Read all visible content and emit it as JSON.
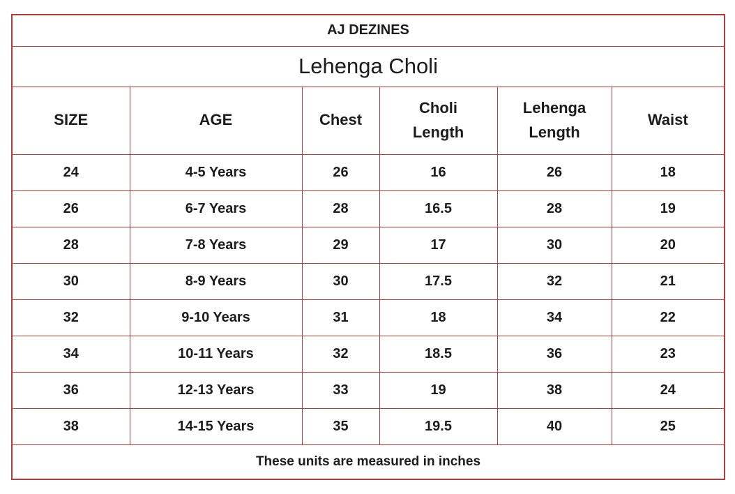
{
  "table": {
    "brand": "AJ DEZINES",
    "title": "Lehenga Choli",
    "columns": [
      "SIZE",
      "AGE",
      "Chest",
      "Choli Length",
      "Lehenga Length",
      "Waist"
    ],
    "rows": [
      [
        "24",
        "4-5 Years",
        "26",
        "16",
        "26",
        "18"
      ],
      [
        "26",
        "6-7 Years",
        "28",
        "16.5",
        "28",
        "19"
      ],
      [
        "28",
        "7-8 Years",
        "29",
        "17",
        "30",
        "20"
      ],
      [
        "30",
        "8-9 Years",
        "30",
        "17.5",
        "32",
        "21"
      ],
      [
        "32",
        "9-10 Years",
        "31",
        "18",
        "34",
        "22"
      ],
      [
        "34",
        "10-11 Years",
        "32",
        "18.5",
        "36",
        "23"
      ],
      [
        "36",
        "12-13 Years",
        "33",
        "19",
        "38",
        "24"
      ],
      [
        "38",
        "14-15 Years",
        "35",
        "19.5",
        "40",
        "25"
      ]
    ],
    "footnote": "These units are measured in inches",
    "colors": {
      "border": "#b03c3c",
      "text": "#1c1c1c",
      "background": "#ffffff"
    }
  }
}
